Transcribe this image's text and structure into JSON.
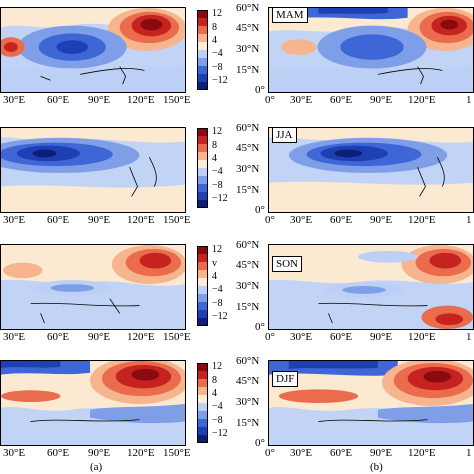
{
  "colors": {
    "scale": [
      "#0b1f75",
      "#1f3fb5",
      "#3f66d6",
      "#7e9fe8",
      "#bcd0f5",
      "#fdebd5",
      "#f6b58f",
      "#ea6c4c",
      "#c4231f",
      "#8b0a10"
    ],
    "bg_blue": "#c2d4f6",
    "bg_cream": "#fbe9d2"
  },
  "column_a": {
    "lon_ticks": [
      "30°E",
      "60°E",
      "90°E",
      "120°E",
      "150°E"
    ],
    "colorbar_labels": [
      [
        "12",
        "8",
        "4",
        "−4",
        "−8",
        "−12"
      ],
      [
        "12",
        "8",
        "4",
        "−4",
        "−8",
        "−12"
      ],
      [
        "12",
        "v",
        "4",
        "−4",
        "−8",
        "−12"
      ],
      [
        "12",
        "8",
        "4",
        "−4",
        "−8",
        "−12"
      ]
    ],
    "panel_label": "(a)"
  },
  "column_b": {
    "lat_ticks": [
      "60°N",
      "45°N",
      "30°N",
      "15°N",
      "0°"
    ],
    "lon_ticks": [
      "0°",
      "30°E",
      "60°E",
      "90°E",
      "120°E",
      "1"
    ],
    "seasons": [
      "MAM",
      "JJA",
      "SON",
      "DJF"
    ],
    "panel_label": "(b)"
  },
  "chart_data": [
    {
      "type": "heatmap",
      "title": "",
      "panel": "a",
      "row": 1,
      "note_levels": [
        -12,
        -8,
        -4,
        4,
        8,
        12
      ]
    },
    {
      "type": "heatmap",
      "title": "MAM",
      "panel": "b",
      "row": 1,
      "lat_range": [
        "0°",
        "60°N"
      ],
      "lon_range": [
        "0°",
        "1"
      ]
    },
    {
      "type": "heatmap",
      "title": "",
      "panel": "a",
      "row": 2
    },
    {
      "type": "heatmap",
      "title": "JJA",
      "panel": "b",
      "row": 2
    },
    {
      "type": "heatmap",
      "title": "",
      "panel": "a",
      "row": 3
    },
    {
      "type": "heatmap",
      "title": "SON",
      "panel": "b",
      "row": 3
    },
    {
      "type": "heatmap",
      "title": "",
      "panel": "a",
      "row": 4
    },
    {
      "type": "heatmap",
      "title": "DJF",
      "panel": "b",
      "row": 4
    }
  ]
}
